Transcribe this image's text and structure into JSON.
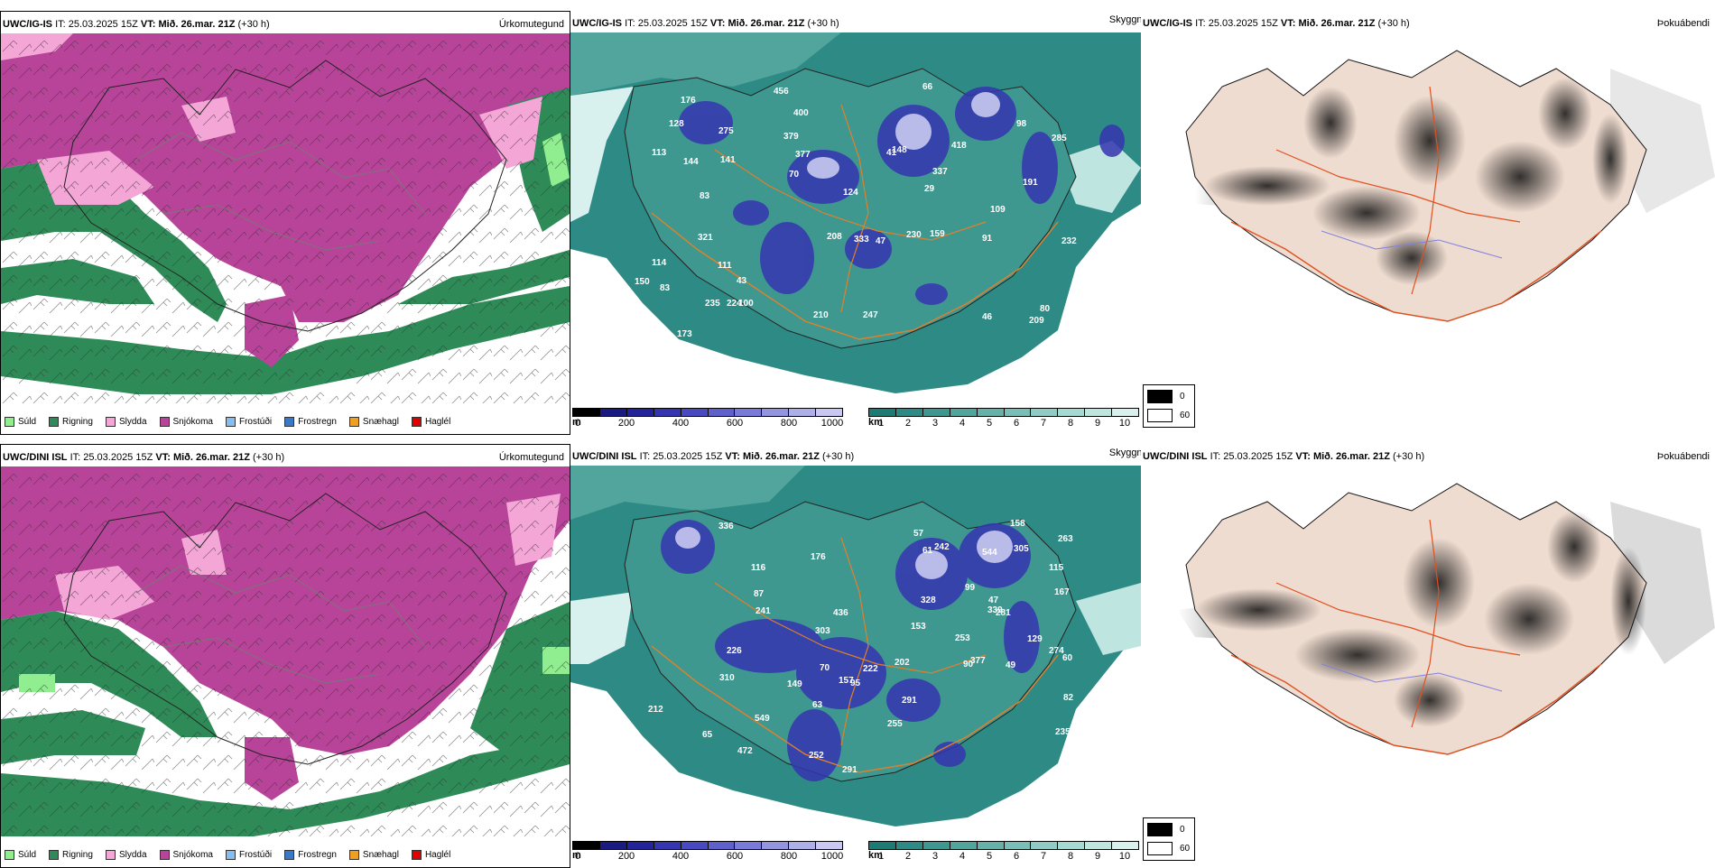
{
  "rows": [
    {
      "model": "UWC/IG-IS",
      "it_label": "IT:",
      "it_value": "25.03.2025 15Z",
      "vt_label": "VT:",
      "vt_value": "Mið. 26.mar. 21Z",
      "lead": "(+30 h)"
    },
    {
      "model": "UWC/DINI ISL",
      "it_label": "IT:",
      "it_value": "25.03.2025 15Z",
      "vt_label": "VT:",
      "vt_value": "Mið. 26.mar. 21Z",
      "lead": "(+30 h)"
    }
  ],
  "panel_titles": {
    "precip_type": "Úrkomutegund",
    "cloud_base": "Skyggni",
    "fog": "Þokuábendi"
  },
  "precip_legend": [
    {
      "label": "Súld",
      "color": "#90ee90"
    },
    {
      "label": "Rigning",
      "color": "#2e8b57"
    },
    {
      "label": "Slydda",
      "color": "#f4a6d7"
    },
    {
      "label": "Snjókoma",
      "color": "#b8449a"
    },
    {
      "label": "Frostúði",
      "color": "#87bdf0"
    },
    {
      "label": "Frostregn",
      "color": "#3a78c8"
    },
    {
      "label": "Snæhagl",
      "color": "#f0a020"
    },
    {
      "label": "Haglél",
      "color": "#e00000"
    }
  ],
  "height_scale": {
    "unit": "m",
    "ticks": [
      "0",
      "200",
      "400",
      "600",
      "800",
      "1000"
    ],
    "colors": [
      "#000000",
      "#1a1a80",
      "#23239a",
      "#3535b0",
      "#4a4ac0",
      "#6060cc",
      "#7a7ad8",
      "#9494e0",
      "#aeaee8",
      "#c8c8f0"
    ]
  },
  "vis_scale": {
    "unit": "km",
    "ticks": [
      "1",
      "2",
      "3",
      "4",
      "5",
      "6",
      "7",
      "8",
      "9",
      "10"
    ],
    "colors": [
      "#1e7a74",
      "#2e8a84",
      "#3f9890",
      "#52a59d",
      "#66b2aa",
      "#7abfb7",
      "#90ccc5",
      "#a7d9d3",
      "#bfe5e0",
      "#d8f1ee"
    ]
  },
  "fog_legend": [
    {
      "label": "0",
      "color": "#000000"
    },
    {
      "label": "60",
      "color": "#ffffff"
    }
  ],
  "cloud_labels_top": [
    "275",
    "232",
    "173",
    "333",
    "377",
    "321",
    "400",
    "128",
    "285",
    "176",
    "208",
    "98",
    "83",
    "46",
    "43",
    "47",
    "124",
    "70",
    "80",
    "109",
    "41",
    "247",
    "83",
    "100",
    "66",
    "91",
    "29",
    "159",
    "144",
    "141",
    "209",
    "210",
    "235",
    "337",
    "114",
    "191",
    "379",
    "456",
    "418",
    "224",
    "148",
    "150",
    "230",
    "111",
    "113"
  ],
  "cloud_labels_bottom": [
    "212",
    "242",
    "167",
    "291",
    "472",
    "252",
    "303",
    "377",
    "116",
    "99",
    "153",
    "129",
    "60",
    "65",
    "57",
    "70",
    "61",
    "47",
    "63",
    "95",
    "90",
    "87",
    "82",
    "544",
    "149",
    "157",
    "241",
    "263",
    "549",
    "222",
    "291",
    "253",
    "305",
    "310",
    "336",
    "328",
    "436",
    "235",
    "226",
    "202",
    "176",
    "158",
    "274",
    "281",
    "115",
    "49",
    "255",
    "339"
  ]
}
